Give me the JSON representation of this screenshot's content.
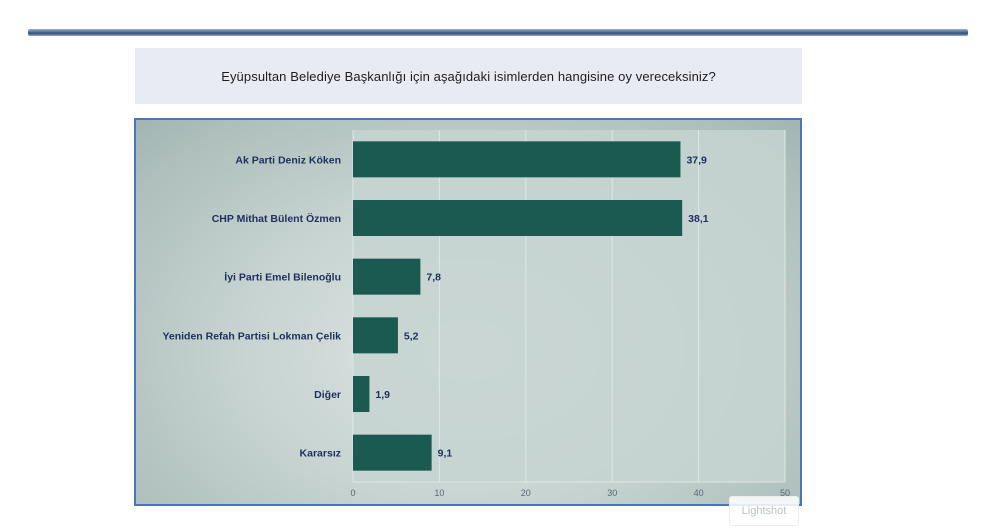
{
  "question": "Eyüpsultan Belediye Başkanlığı için aşağıdaki isimlerden hangisine oy vereceksiniz?",
  "watermark": "Lightshot",
  "colors": {
    "bar": "#1b5a50",
    "plot_bg": "#c5d3d1",
    "frame_border": "#4a76c0",
    "category_text": "#1f2f5e",
    "value_text": "#1f2f5e",
    "tick_text": "#5c6670"
  },
  "chart_data": {
    "type": "bar",
    "orientation": "horizontal",
    "categories": [
      "Ak Parti Deniz Köken",
      "CHP Mithat Bülent Özmen",
      "İyi Parti Emel Bilenoğlu",
      "Yeniden Refah Partisi Lokman Çelik",
      "Diğer",
      "Kararsız"
    ],
    "values": [
      37.9,
      38.1,
      7.8,
      5.2,
      1.9,
      9.1
    ],
    "value_labels": [
      "37,9",
      "38,1",
      "7,8",
      "5,2",
      "1,9",
      "9,1"
    ],
    "xlim": [
      0,
      50
    ],
    "xticks": [
      0,
      10,
      20,
      30,
      40,
      50
    ],
    "xtick_labels": [
      "0",
      "10",
      "20",
      "30",
      "40",
      "50"
    ],
    "grid": "vertical",
    "legend": "none"
  }
}
